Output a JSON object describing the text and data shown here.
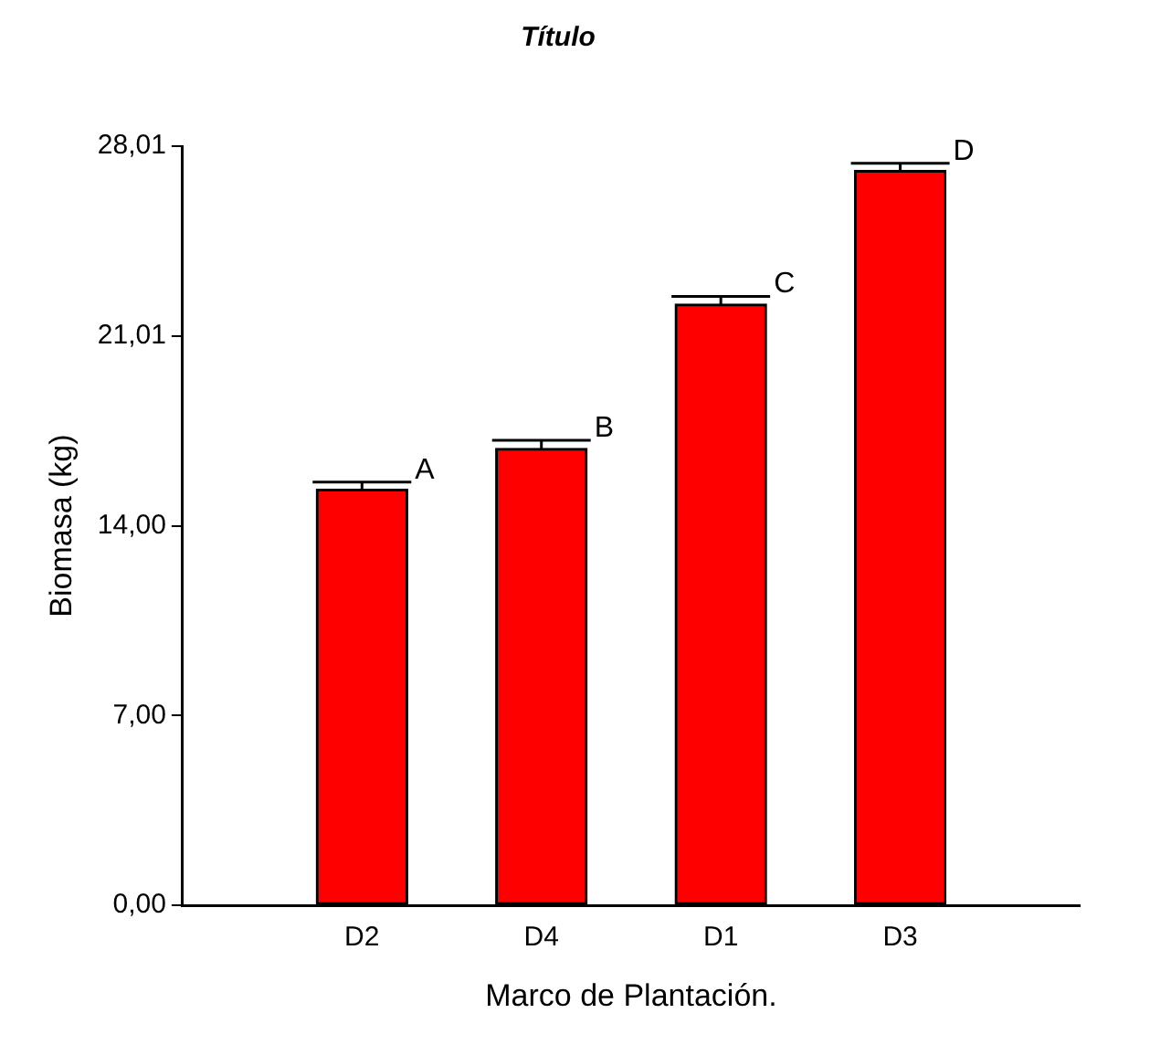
{
  "chart_data": {
    "type": "bar",
    "title": "Título",
    "xlabel": "Marco de Plantación.",
    "ylabel": "Biomasa (kg)",
    "categories": [
      "D2",
      "D4",
      "D1",
      "D3"
    ],
    "series": [
      {
        "color": "#ff0000",
        "values": [
          15.35,
          16.86,
          22.18,
          27.11
        ],
        "errors": [
          [
            15.35,
            15.62
          ],
          [
            16.86,
            17.16
          ],
          [
            22.18,
            22.47
          ],
          [
            27.11,
            27.38
          ]
        ]
      }
    ],
    "ylim": [
      0,
      28.01
    ],
    "yticks": [
      {
        "value": 0,
        "label": "0,00"
      },
      {
        "value": 7,
        "label": "7,00"
      },
      {
        "value": 14,
        "label": "14,00"
      },
      {
        "value": 21.01,
        "label": "21,01"
      },
      {
        "value": 28.01,
        "label": "28,01"
      }
    ],
    "annotations": [
      {
        "text": "A",
        "x": "D2",
        "y": 15.62
      },
      {
        "text": "B",
        "x": "D4",
        "y": 17.16
      },
      {
        "text": "C",
        "x": "D1",
        "y": 22.47
      },
      {
        "text": "D",
        "x": "D3",
        "y": 27.38
      }
    ],
    "grid": false,
    "legend": false
  }
}
